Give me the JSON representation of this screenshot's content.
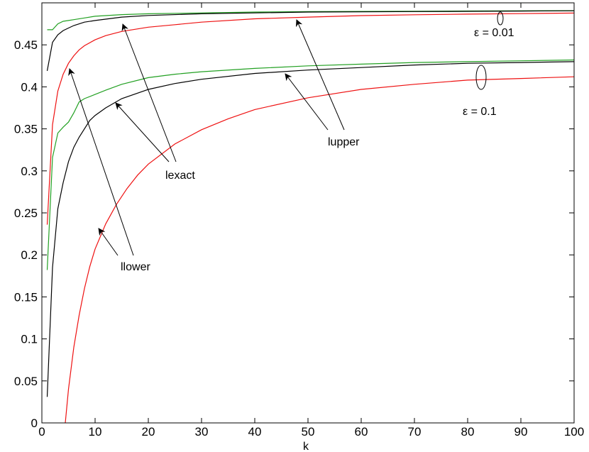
{
  "chart_data": {
    "type": "line",
    "title": "",
    "xlabel": "k",
    "ylabel": "",
    "xlim": [
      0,
      100
    ],
    "ylim": [
      0,
      0.5
    ],
    "grid": false,
    "legend": "none",
    "xticks": [
      0,
      10,
      20,
      30,
      40,
      50,
      60,
      70,
      80,
      90,
      100
    ],
    "yticks": [
      0,
      0.05,
      0.1,
      0.15,
      0.2,
      0.25,
      0.3,
      0.35,
      0.4,
      0.45
    ],
    "ytick_labels": [
      "0",
      "0.05",
      "0.1",
      "0.15",
      "0.2",
      "0.25",
      "0.3",
      "0.35",
      "0.4",
      "0.45"
    ],
    "colors": {
      "upper": "#22a022",
      "exact": "#000000",
      "lower": "#ee1111"
    },
    "groups": [
      {
        "epsilon_label": "ε = 0.01",
        "series": [
          {
            "role": "upper",
            "x": [
              1,
              2,
              3,
              4,
              5,
              6,
              8,
              10,
              15,
              20,
              30,
              40,
              50,
              60,
              70,
              80,
              90,
              100
            ],
            "y": [
              0.468,
              0.468,
              0.475,
              0.478,
              0.479,
              0.48,
              0.482,
              0.484,
              0.486,
              0.487,
              0.488,
              0.489,
              0.4895,
              0.4898,
              0.49,
              0.4903,
              0.4905,
              0.4907
            ]
          },
          {
            "role": "exact",
            "x": [
              1,
              2,
              3,
              4,
              5,
              6,
              8,
              10,
              15,
              20,
              30,
              40,
              50,
              60,
              70,
              80,
              90,
              100
            ],
            "y": [
              0.419,
              0.453,
              0.462,
              0.467,
              0.47,
              0.473,
              0.477,
              0.479,
              0.483,
              0.485,
              0.487,
              0.488,
              0.489,
              0.4893,
              0.4896,
              0.4899,
              0.4902,
              0.4905
            ]
          },
          {
            "role": "lower",
            "x": [
              1,
              2,
              3,
              4,
              5,
              6,
              7,
              8,
              10,
              12,
              15,
              20,
              25,
              30,
              40,
              50,
              60,
              70,
              80,
              90,
              100
            ],
            "y": [
              0.236,
              0.355,
              0.395,
              0.415,
              0.428,
              0.437,
              0.444,
              0.449,
              0.456,
              0.461,
              0.466,
              0.471,
              0.474,
              0.477,
              0.481,
              0.483,
              0.4848,
              0.4858,
              0.4866,
              0.4872,
              0.4878
            ]
          }
        ]
      },
      {
        "epsilon_label": "ε = 0.1",
        "series": [
          {
            "role": "upper",
            "x": [
              1,
              2,
              3,
              4,
              5,
              6,
              7,
              8,
              10,
              12,
              15,
              20,
              25,
              30,
              40,
              50,
              60,
              70,
              80,
              90,
              100
            ],
            "y": [
              0.182,
              0.316,
              0.345,
              0.352,
              0.358,
              0.369,
              0.382,
              0.386,
              0.391,
              0.396,
              0.403,
              0.411,
              0.415,
              0.418,
              0.422,
              0.425,
              0.427,
              0.429,
              0.43,
              0.431,
              0.432
            ]
          },
          {
            "role": "exact",
            "x": [
              1,
              2,
              3,
              4,
              5,
              6,
              7,
              8,
              9,
              10,
              12,
              15,
              20,
              25,
              30,
              40,
              50,
              60,
              70,
              80,
              90,
              100
            ],
            "y": [
              0.031,
              0.185,
              0.255,
              0.286,
              0.311,
              0.328,
              0.34,
              0.35,
              0.36,
              0.366,
              0.375,
              0.386,
              0.397,
              0.404,
              0.409,
              0.416,
              0.42,
              0.423,
              0.426,
              0.428,
              0.429,
              0.43
            ]
          },
          {
            "role": "lower",
            "x": [
              4.4,
              5,
              6,
              7,
              8,
              9,
              10,
              12,
              14,
              16,
              18,
              20,
              25,
              30,
              35,
              40,
              50,
              60,
              70,
              80,
              90,
              100
            ],
            "y": [
              0,
              0.04,
              0.09,
              0.128,
              0.16,
              0.186,
              0.207,
              0.237,
              0.26,
              0.279,
              0.295,
              0.308,
              0.332,
              0.349,
              0.362,
              0.373,
              0.387,
              0.397,
              0.403,
              0.408,
              0.41,
              0.412
            ]
          }
        ]
      }
    ],
    "annotations": [
      {
        "text": "lexact"
      },
      {
        "text": "lupper"
      },
      {
        "text": "llower"
      }
    ]
  }
}
